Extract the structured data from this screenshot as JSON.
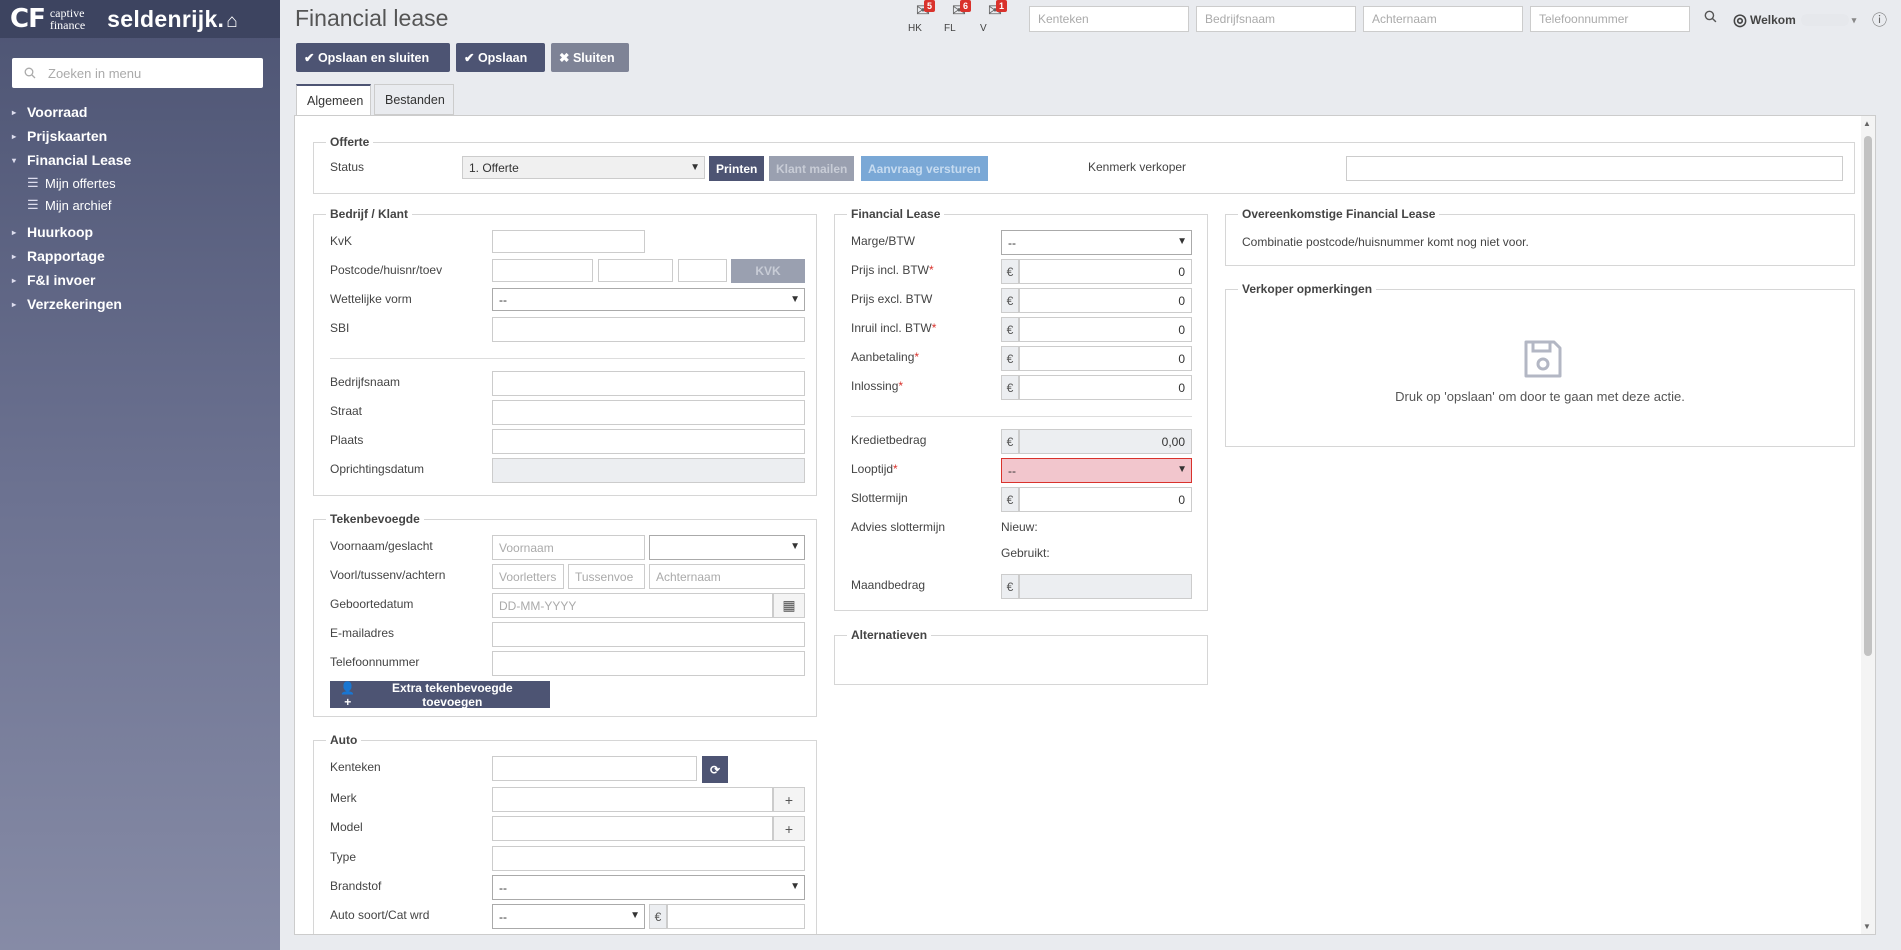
{
  "brand": {
    "cf": "CF",
    "captive_line1": "captive",
    "captive_line2": "finance",
    "name": "seldenrijk.",
    "house": "⌂"
  },
  "sidebar": {
    "search_placeholder": "Zoeken in menu",
    "items": [
      {
        "label": "Voorraad",
        "caret": "▸"
      },
      {
        "label": "Prijskaarten",
        "caret": "▸"
      },
      {
        "label": "Financial Lease",
        "caret": "▾"
      },
      {
        "label": "Huurkoop",
        "caret": "▸"
      },
      {
        "label": "Rapportage",
        "caret": "▸"
      },
      {
        "label": "F&I invoer",
        "caret": "▸"
      },
      {
        "label": "Verzekeringen",
        "caret": "▸"
      }
    ],
    "subitems": [
      {
        "label": "Mijn offertes"
      },
      {
        "label": "Mijn archief"
      }
    ]
  },
  "header": {
    "title": "Financial lease",
    "envelopes": [
      {
        "label": "HK",
        "count": "5"
      },
      {
        "label": "FL",
        "count": "6"
      },
      {
        "label": "V",
        "count": "1"
      }
    ],
    "search_placeholders": [
      "Kenteken",
      "Bedrijfsnaam",
      "Achternaam",
      "Telefoonnummer"
    ],
    "welcome": "Welkom"
  },
  "toolbar": {
    "save_close": "✔ Opslaan en sluiten",
    "save": "✔ Opslaan",
    "close": "✖ Sluiten"
  },
  "tabs": [
    {
      "label": "Algemeen"
    },
    {
      "label": "Bestanden"
    }
  ],
  "offerte": {
    "legend": "Offerte",
    "status_label": "Status",
    "status_value": "1. Offerte",
    "print": "Printen",
    "mail": "Klant mailen",
    "request": "Aanvraag versturen",
    "kenmerk_label": "Kenmerk verkoper"
  },
  "bedrijf": {
    "legend": "Bedrijf / Klant",
    "kvk": "KvK",
    "postcode": "Postcode/huisnr/toev",
    "kvk_btn": "KVK",
    "wettelijke": "Wettelijke vorm",
    "wettelijke_value": "--",
    "sbi": "SBI",
    "bedrijfsnaam": "Bedrijfsnaam",
    "straat": "Straat",
    "plaats": "Plaats",
    "oprichtingsdatum": "Oprichtingsdatum"
  },
  "tekenbevoegde": {
    "legend": "Tekenbevoegde",
    "voornaam_geslacht": "Voornaam/geslacht",
    "voornaam_ph": "Voornaam",
    "voorl": "Voorl/tussenv/achtern",
    "voorletters_ph": "Voorletters",
    "tussenvoegsel_ph": "Tussenvoe",
    "achternaam_ph": "Achternaam",
    "geboortedatum": "Geboortedatum",
    "geboorte_ph": "DD-MM-YYYY",
    "email": "E-mailadres",
    "telefoon": "Telefoonnummer",
    "extra_btn": "Extra tekenbevoegde toevoegen"
  },
  "auto": {
    "legend": "Auto",
    "kenteken": "Kenteken",
    "merk": "Merk",
    "model": "Model",
    "type": "Type",
    "brandstof": "Brandstof",
    "brandstof_value": "--",
    "soort": "Auto soort/Cat wrd",
    "soort_value": "--"
  },
  "lease": {
    "legend": "Financial Lease",
    "marge": "Marge/BTW",
    "marge_value": "--",
    "prijs_incl": "Prijs incl. BTW",
    "prijs_excl": "Prijs excl. BTW",
    "inruil": "Inruil incl. BTW",
    "aanbetaling": "Aanbetaling",
    "inlossing": "Inlossing",
    "krediet": "Kredietbedrag",
    "looptijd": "Looptijd",
    "looptijd_value": "--",
    "slottermijn": "Slottermijn",
    "advies": "Advies slottermijn",
    "nieuw": "Nieuw:",
    "gebruikt": "Gebruikt:",
    "maandbedrag": "Maandbedrag",
    "currency": "€",
    "values": {
      "prijs_incl": "0",
      "prijs_excl": "0",
      "inruil": "0",
      "aanbetaling": "0",
      "inlossing": "0",
      "krediet": "0,00",
      "slottermijn": "0"
    }
  },
  "alternatieven": {
    "legend": "Alternatieven"
  },
  "overeenkomstig": {
    "legend": "Overeenkomstige Financial Lease",
    "text": "Combinatie postcode/huisnummer komt nog niet voor."
  },
  "verkoper": {
    "legend": "Verkoper opmerkingen",
    "text": "Druk op 'opslaan' om door te gaan met deze actie."
  }
}
